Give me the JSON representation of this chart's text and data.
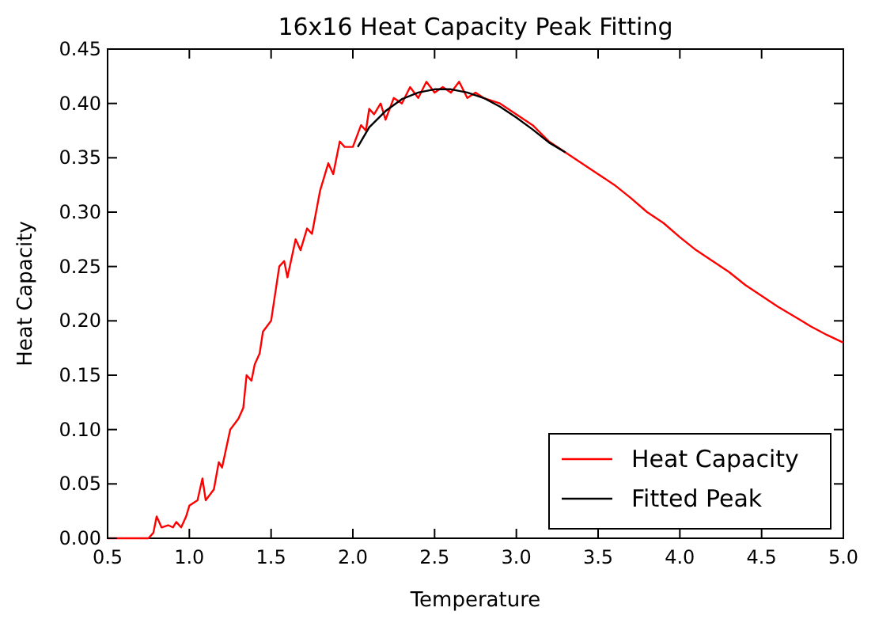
{
  "chart_data": {
    "type": "line",
    "title": "16x16 Heat Capacity Peak Fitting",
    "xlabel": "Temperature",
    "ylabel": "Heat Capacity",
    "xlim": [
      0.5,
      5.0
    ],
    "xticks": [
      {
        "value": 0.5,
        "label": "0.5"
      },
      {
        "value": 1,
        "label": "1.0"
      },
      {
        "value": 1.5,
        "label": "1.5"
      },
      {
        "value": 2,
        "label": "2.0"
      },
      {
        "value": 2.5,
        "label": "2.5"
      },
      {
        "value": 3,
        "label": "3.0"
      },
      {
        "value": 3.5,
        "label": "3.5"
      },
      {
        "value": 4,
        "label": "4.0"
      },
      {
        "value": 4.5,
        "label": "4.5"
      },
      {
        "value": 5,
        "label": "5.0"
      }
    ],
    "ylim": [
      0,
      0.45
    ],
    "yticks": [
      {
        "value": 0,
        "label": "0.00"
      },
      {
        "value": 0.05,
        "label": "0.05"
      },
      {
        "value": 0.1,
        "label": "0.10"
      },
      {
        "value": 0.15,
        "label": "0.15"
      },
      {
        "value": 0.2,
        "label": "0.20"
      },
      {
        "value": 0.25,
        "label": "0.25"
      },
      {
        "value": 0.3,
        "label": "0.30"
      },
      {
        "value": 0.35,
        "label": "0.35"
      },
      {
        "value": 0.4,
        "label": "0.40"
      },
      {
        "value": 0.45,
        "label": "0.45"
      }
    ],
    "grid": false,
    "legend": "bottom right",
    "marker": "none",
    "line_style": "solid",
    "series": [
      {
        "name": "Heat Capacity",
        "color": "#ff0000",
        "x": [
          0.5,
          0.75,
          0.78,
          0.8,
          0.83,
          0.87,
          0.9,
          0.92,
          0.95,
          0.98,
          1.0,
          1.05,
          1.08,
          1.1,
          1.15,
          1.18,
          1.2,
          1.25,
          1.3,
          1.33,
          1.35,
          1.38,
          1.4,
          1.43,
          1.45,
          1.5,
          1.55,
          1.58,
          1.6,
          1.65,
          1.68,
          1.72,
          1.75,
          1.8,
          1.85,
          1.88,
          1.92,
          1.95,
          2.0,
          2.05,
          2.08,
          2.1,
          2.13,
          2.17,
          2.2,
          2.25,
          2.3,
          2.35,
          2.4,
          2.45,
          2.5,
          2.55,
          2.6,
          2.65,
          2.7,
          2.75,
          2.8,
          2.9,
          3.0,
          3.1,
          3.2,
          3.3,
          3.4,
          3.5,
          3.6,
          3.7,
          3.8,
          3.9,
          4.0,
          4.1,
          4.2,
          4.3,
          4.4,
          4.5,
          4.6,
          4.7,
          4.8,
          4.9,
          5.0
        ],
        "values": [
          0,
          0,
          0.005,
          0.02,
          0.01,
          0.012,
          0.01,
          0.015,
          0.01,
          0.02,
          0.03,
          0.035,
          0.055,
          0.035,
          0.045,
          0.07,
          0.065,
          0.1,
          0.11,
          0.12,
          0.15,
          0.145,
          0.16,
          0.17,
          0.19,
          0.2,
          0.25,
          0.255,
          0.24,
          0.275,
          0.265,
          0.285,
          0.28,
          0.32,
          0.345,
          0.335,
          0.365,
          0.36,
          0.36,
          0.38,
          0.375,
          0.395,
          0.39,
          0.4,
          0.385,
          0.405,
          0.4,
          0.415,
          0.405,
          0.42,
          0.41,
          0.415,
          0.41,
          0.42,
          0.405,
          0.41,
          0.405,
          0.4,
          0.39,
          0.38,
          0.365,
          0.355,
          0.345,
          0.335,
          0.325,
          0.313,
          0.3,
          0.29,
          0.277,
          0.265,
          0.255,
          0.245,
          0.233,
          0.223,
          0.213,
          0.204,
          0.195,
          0.187,
          0.18
        ]
      },
      {
        "name": "Fitted Peak",
        "color": "#000000",
        "x": [
          2.03,
          2.1,
          2.2,
          2.3,
          2.4,
          2.5,
          2.6,
          2.7,
          2.8,
          2.9,
          3.0,
          3.1,
          3.2,
          3.3
        ],
        "values": [
          0.36,
          0.378,
          0.393,
          0.404,
          0.41,
          0.413,
          0.413,
          0.41,
          0.405,
          0.397,
          0.387,
          0.376,
          0.364,
          0.355
        ]
      }
    ]
  }
}
